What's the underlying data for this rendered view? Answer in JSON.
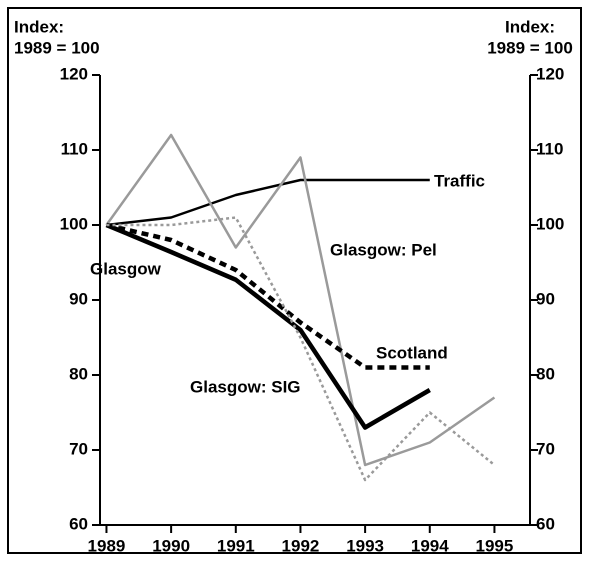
{
  "chart_data": {
    "type": "line",
    "ylabel": [
      "Index:",
      "1989 = 100"
    ],
    "y2label": [
      "Index:",
      "1989 = 100"
    ],
    "x": [
      1989,
      1990,
      1991,
      1992,
      1993,
      1994,
      1995
    ],
    "xlim": [
      1988.9,
      1995.55
    ],
    "xticks": [
      1989,
      1990,
      1991,
      1992,
      1993,
      1994,
      1995
    ],
    "ylim": [
      60,
      120
    ],
    "yticks": [
      60,
      70,
      80,
      90,
      100,
      110,
      120
    ],
    "y2lim": [
      60,
      120
    ],
    "y2ticks": [
      60,
      70,
      80,
      90,
      100,
      110,
      120
    ],
    "series": [
      {
        "name": "Traffic",
        "color": "#000000",
        "linestyle": "solid",
        "values": [
          100,
          101,
          104,
          106,
          106,
          106,
          null
        ]
      },
      {
        "name": "Glasgow: Pel",
        "color": "#9a9a9a",
        "linestyle": "solid",
        "values": [
          100,
          112,
          97,
          109,
          68,
          71,
          77
        ]
      },
      {
        "name": "Glasgow",
        "color": "#000000",
        "linestyle": "bold",
        "values": [
          100,
          96.4,
          92.7,
          86,
          73,
          78,
          null
        ]
      },
      {
        "name": "Scotland",
        "color": "#000000",
        "linestyle": "bold-dashed",
        "values": [
          100,
          98,
          94,
          87,
          81,
          81,
          null
        ]
      },
      {
        "name": "Glasgow: SIG",
        "color": "#9a9a9a",
        "linestyle": "dotted",
        "values": [
          100,
          100,
          101,
          85,
          66,
          75,
          68
        ]
      }
    ]
  }
}
